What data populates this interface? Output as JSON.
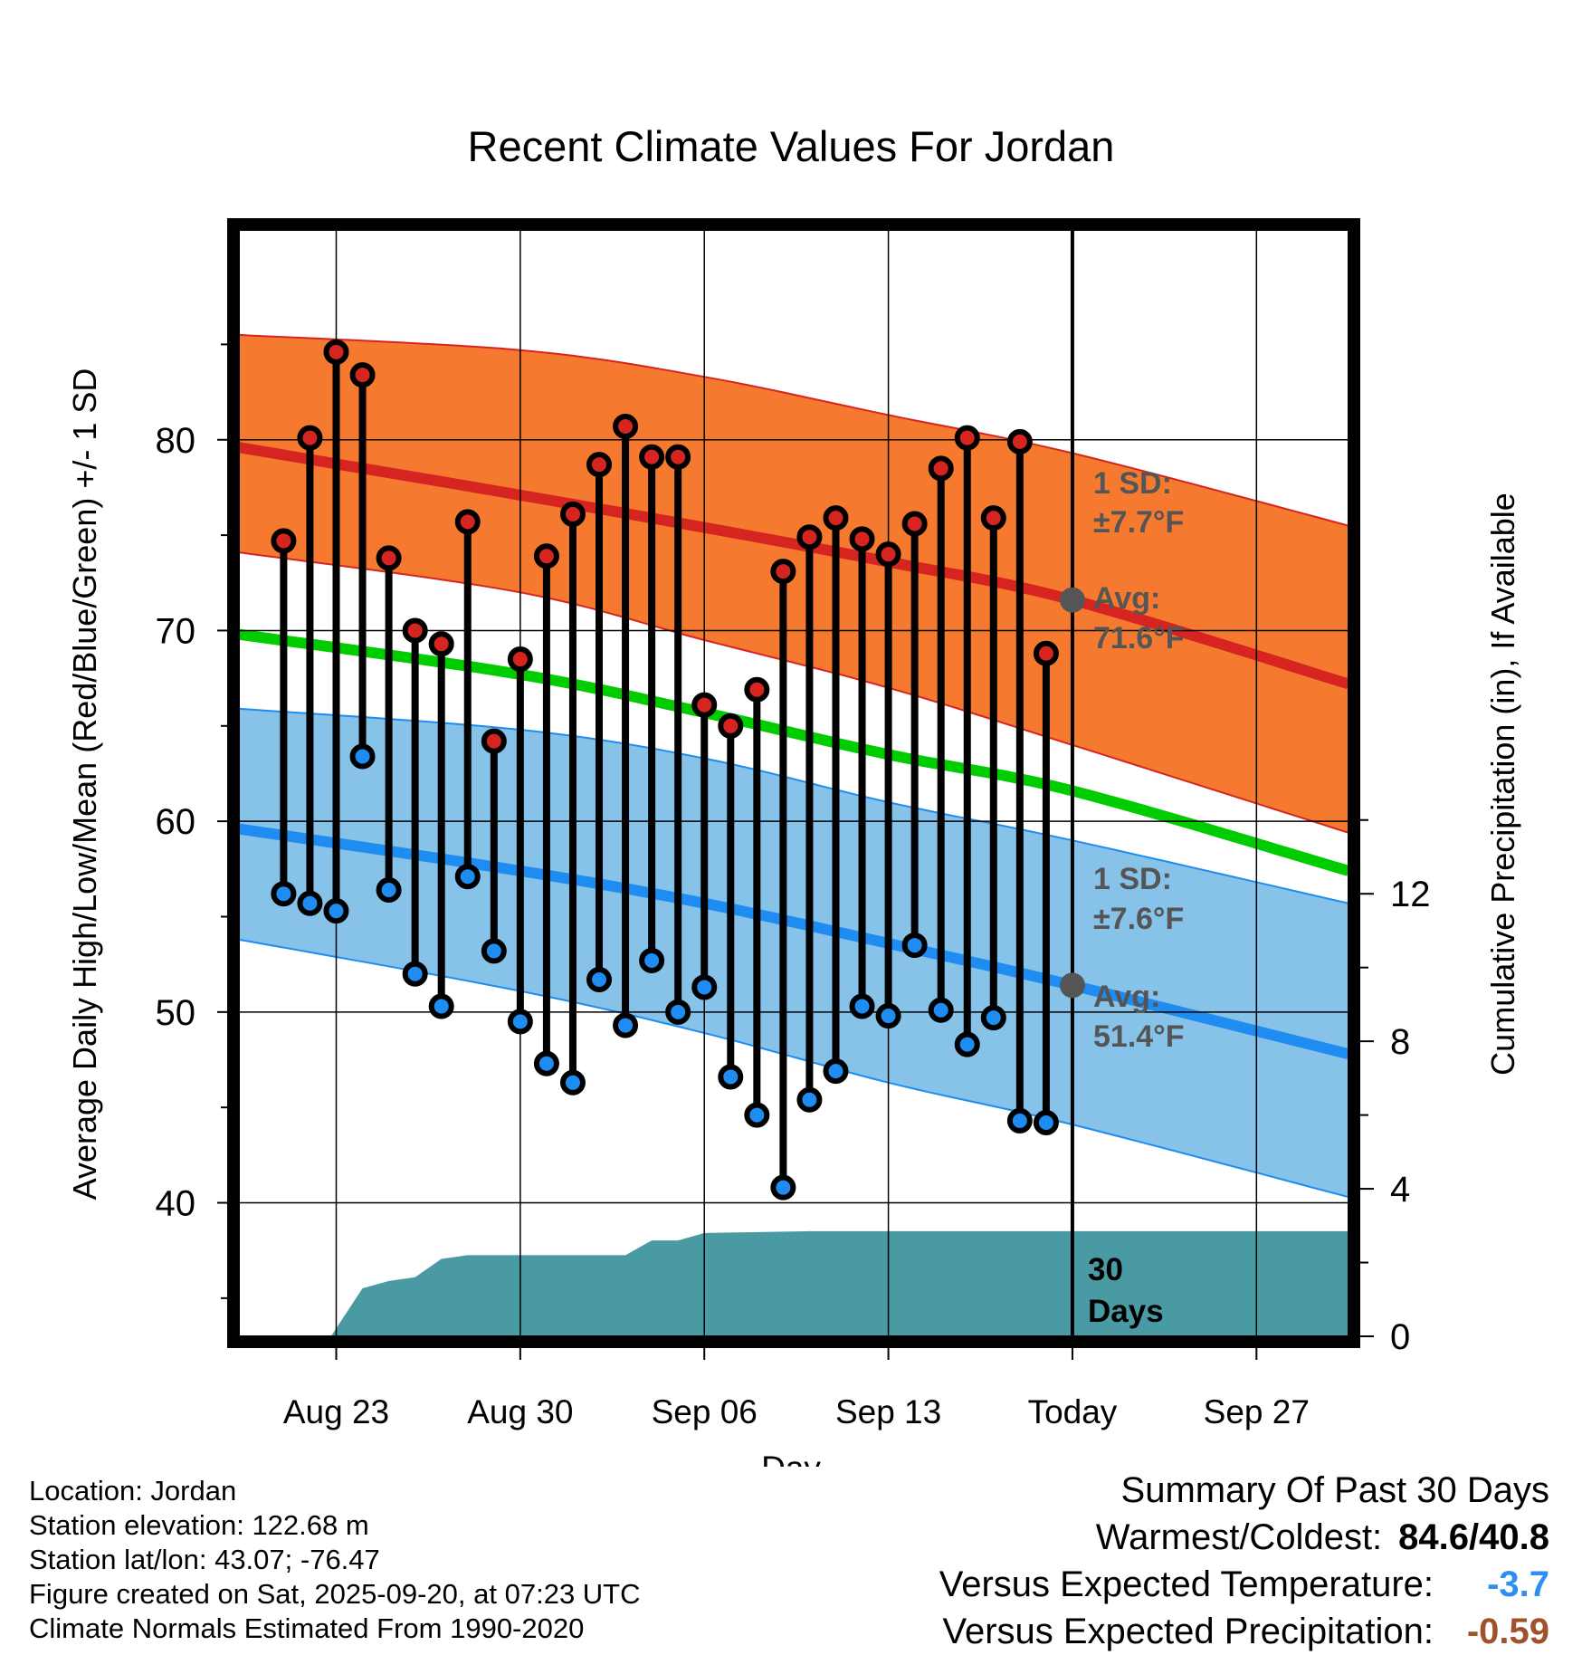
{
  "chart_data": {
    "type": "line",
    "title": "Recent Climate Values For Jordan",
    "xlabel": "Day",
    "ylabel_left": "Average Daily High/Low/Mean (Red/Blue/Green) +/- 1 SD",
    "ylabel_right": "Cumulative Precipitation (in), If Available",
    "ylim": [
      33,
      91
    ],
    "y_ticks": [
      40,
      50,
      60,
      70,
      80
    ],
    "y_ticks_labels": [
      "40",
      "50",
      "60",
      "70",
      "80"
    ],
    "y2lim": [
      0,
      30
    ],
    "y2_ticks": [
      0,
      4,
      8,
      12
    ],
    "y2_ticks_labels": [
      "0",
      "4",
      "8",
      "12"
    ],
    "x_range_days": [
      -31.7,
      10.5
    ],
    "x_ticks": [
      -28,
      -21,
      -14,
      -7,
      0,
      7
    ],
    "x_tick_labels": [
      "Aug 23",
      "Aug 30",
      "Sep 06",
      "Sep 13",
      "Today",
      "Sep 27"
    ],
    "normals": {
      "days": [
        -31.7,
        -21,
        -14,
        -7,
        0,
        10.5
      ],
      "high_mean": [
        79.6,
        77.1,
        75.4,
        73.6,
        71.6,
        67.2
      ],
      "high_upper": [
        85.5,
        84.7,
        83.3,
        81.3,
        79.3,
        75.5
      ],
      "high_lower": [
        74.1,
        72.0,
        69.5,
        67.0,
        64.0,
        59.4
      ],
      "mean": [
        69.8,
        67.7,
        65.7,
        63.5,
        61.6,
        57.4
      ],
      "low_mean": [
        59.6,
        57.4,
        55.7,
        53.6,
        51.4,
        47.8
      ],
      "low_upper": [
        65.9,
        64.8,
        63.3,
        61.0,
        59.0,
        55.7
      ],
      "low_lower": [
        53.8,
        51.1,
        48.9,
        46.3,
        44.1,
        40.3
      ]
    },
    "observed": {
      "days": [
        -30,
        -29,
        -28,
        -27,
        -26,
        -25,
        -24,
        -23,
        -22,
        -21,
        -20,
        -19,
        -18,
        -17,
        -16,
        -15,
        -14,
        -13,
        -12,
        -11,
        -10,
        -9,
        -8,
        -7,
        -6,
        -5,
        -4,
        -3,
        -2,
        -1
      ],
      "highs": [
        74.7,
        80.1,
        84.6,
        83.4,
        73.8,
        70.0,
        69.3,
        75.7,
        64.2,
        68.5,
        73.9,
        76.1,
        78.7,
        80.7,
        79.1,
        79.1,
        66.1,
        65.0,
        66.9,
        73.1,
        74.9,
        75.9,
        74.8,
        74.0,
        75.6,
        78.5,
        80.1,
        75.9,
        79.9,
        68.8
      ],
      "lows": [
        56.2,
        55.7,
        55.3,
        63.4,
        56.4,
        52.0,
        50.3,
        57.1,
        53.2,
        49.5,
        47.3,
        46.3,
        51.7,
        49.3,
        52.7,
        50.0,
        51.3,
        46.6,
        44.6,
        40.8,
        45.4,
        46.9,
        50.3,
        49.8,
        53.5,
        50.1,
        48.3,
        49.7,
        44.3,
        44.2
      ]
    },
    "precip_cumulative": {
      "days": [
        -28.2,
        -27,
        -26,
        -25,
        -24,
        -23,
        -22,
        -21,
        -17,
        -16,
        -15,
        -14,
        -10,
        10.5
      ],
      "values": [
        0,
        1.3,
        1.5,
        1.6,
        2.1,
        2.2,
        2.2,
        2.2,
        2.2,
        2.6,
        2.6,
        2.8,
        2.85,
        2.85
      ]
    },
    "annotations": {
      "high_sd_label": "1 SD:",
      "high_sd_value": "±7.7°F",
      "high_avg_label": "Avg:",
      "high_avg_value": "71.6°F",
      "high_avg_point": 71.6,
      "low_sd_label": "1 SD:",
      "low_sd_value": "±7.6°F",
      "low_avg_label": "Avg:",
      "low_avg_value": "51.4°F",
      "low_avg_point": 51.4,
      "days_line1": "30",
      "days_line2": "Days"
    }
  },
  "colors": {
    "high_band": "#f57a30",
    "high_line": "#d62420",
    "mean_line": "#00cc00",
    "low_band": "#87c2e8",
    "low_line": "#1e8cf0",
    "precip": "#4a9aa4",
    "annot": "#555555",
    "temp_anom": "#2e8ff0",
    "precip_anom": "#a0522d"
  },
  "info": {
    "location": "Location: Jordan",
    "elevation": "Station elevation: 122.68 m",
    "latlon": "Station lat/lon: 43.07; -76.47",
    "created": "Figure created on Sat, 2025-09-20, at 07:23 UTC",
    "normals": "Climate Normals Estimated From 1990-2020"
  },
  "summary": {
    "title": "Summary Of Past 30 Days",
    "warmest_label": "Warmest/Coldest:",
    "warmest_value": "84.6/40.8",
    "temp_label": "Versus Expected Temperature:",
    "temp_value": "-3.7",
    "precip_label": "Versus Expected Precipitation:",
    "precip_value": "-0.59"
  }
}
